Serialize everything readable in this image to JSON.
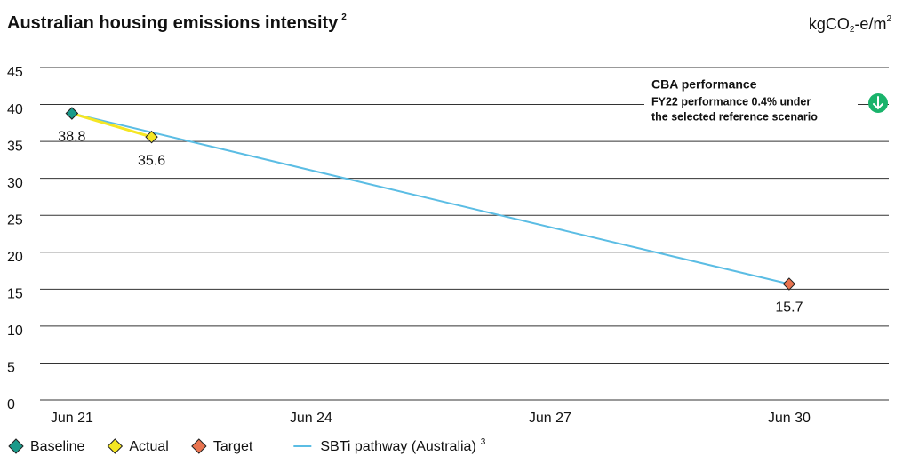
{
  "chart_data": {
    "type": "line",
    "title": "Australian housing emissions intensity",
    "title_note": "2",
    "unit": {
      "main": "kgCO",
      "sub": "2",
      "rest": "-e/m",
      "sup": "2"
    },
    "annotation": {
      "title": "CBA performance",
      "lines": [
        "FY22 performance 0.4% under",
        "the selected reference scenario"
      ]
    },
    "xlim": [
      20.6,
      31.25
    ],
    "xticks": [
      {
        "value": 21,
        "label": "Jun 21"
      },
      {
        "value": 24,
        "label": "Jun 24"
      },
      {
        "value": 27,
        "label": "Jun 27"
      },
      {
        "value": 30,
        "label": "Jun 30"
      }
    ],
    "ylim": [
      0,
      45
    ],
    "yticks": [
      0,
      5,
      10,
      15,
      20,
      25,
      30,
      35,
      40,
      45
    ],
    "grid": true,
    "legend": "bottom",
    "series": [
      {
        "name": "SBTi pathway (Australia)",
        "note": "3",
        "color": "#5bbde4",
        "style": "line",
        "x": [
          21,
          30
        ],
        "values": [
          38.8,
          15.7
        ]
      },
      {
        "name": "Actual",
        "color": "#f5e623",
        "style": "line-marker",
        "x": [
          21,
          22
        ],
        "values": [
          38.8,
          35.6
        ],
        "labelled": [
          false,
          true
        ]
      },
      {
        "name": "Target",
        "color": "#e8734f",
        "style": "marker",
        "x": [
          30
        ],
        "values": [
          15.7
        ],
        "labelled": [
          true
        ]
      },
      {
        "name": "Baseline",
        "color": "#1a9a8a",
        "style": "marker",
        "x": [
          21
        ],
        "values": [
          38.8
        ],
        "labelled": [
          true
        ]
      }
    ],
    "legend_order": [
      3,
      1,
      2,
      0
    ]
  }
}
